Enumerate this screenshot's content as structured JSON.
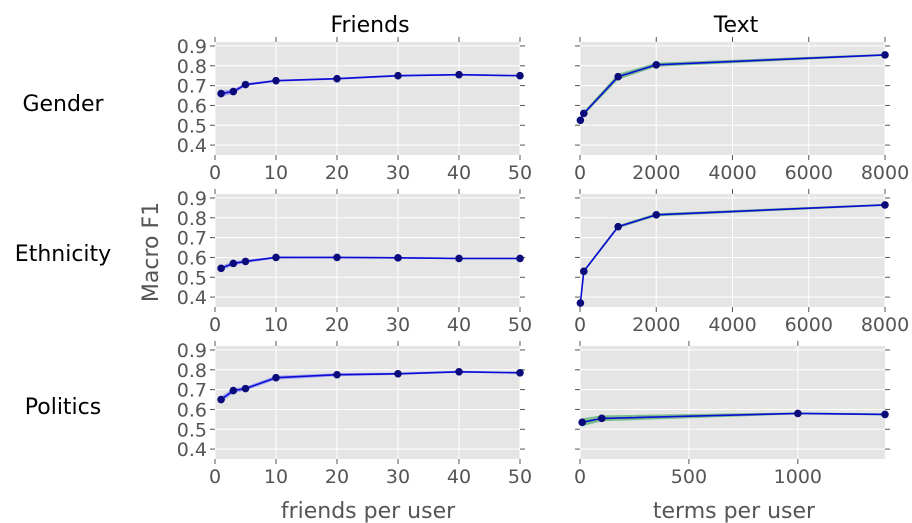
{
  "column_titles": [
    "Friends",
    "Text"
  ],
  "row_labels": [
    "Gender",
    "Ethnicity",
    "Politics"
  ],
  "ylabel": "Macro F1",
  "xlabels": [
    "friends per user",
    "terms per user"
  ],
  "colors": {
    "line": "#0b0bd6",
    "marker": "#0a0a7a",
    "band_friends": "#6f6ff0",
    "band_text": "#55b06e",
    "plot_bg": "#e5e5e5"
  },
  "chart_data": [
    {
      "type": "line",
      "id": "gender-friends",
      "row": 0,
      "col": 0,
      "x": [
        1,
        3,
        5,
        10,
        20,
        30,
        40,
        50
      ],
      "y": [
        0.66,
        0.67,
        0.705,
        0.725,
        0.735,
        0.75,
        0.755,
        0.75
      ],
      "band": [
        0.015,
        0.012,
        0.008,
        0.005,
        0.005,
        0.005,
        0.004,
        0.004
      ],
      "xlim": [
        0,
        50
      ],
      "ylim": [
        0.35,
        0.92
      ],
      "xticks": [
        "0",
        "10",
        "20",
        "30",
        "40",
        "50"
      ],
      "xtick_values": [
        0,
        10,
        20,
        30,
        40,
        50
      ],
      "yticks": [
        "0.4",
        "0.5",
        "0.6",
        "0.7",
        "0.8",
        "0.9"
      ],
      "ytick_values": [
        0.4,
        0.5,
        0.6,
        0.7,
        0.8,
        0.9
      ]
    },
    {
      "type": "line",
      "id": "gender-text",
      "row": 0,
      "col": 1,
      "x": [
        10,
        100,
        1000,
        2000,
        8000
      ],
      "y": [
        0.525,
        0.56,
        0.745,
        0.805,
        0.855
      ],
      "band": [
        0.01,
        0.01,
        0.015,
        0.01,
        0.005
      ],
      "xlim": [
        0,
        8000
      ],
      "ylim": [
        0.35,
        0.92
      ],
      "xticks": [
        "0",
        "2000",
        "4000",
        "6000",
        "8000"
      ],
      "xtick_values": [
        0,
        2000,
        4000,
        6000,
        8000
      ],
      "yticks": [],
      "ytick_values": [
        0.4,
        0.5,
        0.6,
        0.7,
        0.8,
        0.9
      ]
    },
    {
      "type": "line",
      "id": "ethnicity-friends",
      "row": 1,
      "col": 0,
      "x": [
        1,
        3,
        5,
        10,
        20,
        30,
        40,
        50
      ],
      "y": [
        0.545,
        0.57,
        0.58,
        0.6,
        0.6,
        0.598,
        0.595,
        0.595
      ],
      "band": [
        0.012,
        0.01,
        0.008,
        0.005,
        0.004,
        0.004,
        0.004,
        0.004
      ],
      "xlim": [
        0,
        50
      ],
      "ylim": [
        0.35,
        0.92
      ],
      "xticks": [
        "0",
        "10",
        "20",
        "30",
        "40",
        "50"
      ],
      "xtick_values": [
        0,
        10,
        20,
        30,
        40,
        50
      ],
      "yticks": [
        "0.4",
        "0.5",
        "0.6",
        "0.7",
        "0.8",
        "0.9"
      ],
      "ytick_values": [
        0.4,
        0.5,
        0.6,
        0.7,
        0.8,
        0.9
      ]
    },
    {
      "type": "line",
      "id": "ethnicity-text",
      "row": 1,
      "col": 1,
      "x": [
        10,
        100,
        1000,
        2000,
        8000
      ],
      "y": [
        0.37,
        0.53,
        0.755,
        0.815,
        0.865
      ],
      "band": [
        0.005,
        0.008,
        0.008,
        0.008,
        0.005
      ],
      "xlim": [
        0,
        8000
      ],
      "ylim": [
        0.35,
        0.92
      ],
      "xticks": [
        "0",
        "2000",
        "4000",
        "6000",
        "8000"
      ],
      "xtick_values": [
        0,
        2000,
        4000,
        6000,
        8000
      ],
      "yticks": [],
      "ytick_values": [
        0.4,
        0.5,
        0.6,
        0.7,
        0.8,
        0.9
      ]
    },
    {
      "type": "line",
      "id": "politics-friends",
      "row": 2,
      "col": 0,
      "x": [
        1,
        3,
        5,
        10,
        20,
        30,
        40,
        50
      ],
      "y": [
        0.65,
        0.695,
        0.705,
        0.76,
        0.775,
        0.78,
        0.79,
        0.785
      ],
      "band": [
        0.015,
        0.012,
        0.01,
        0.01,
        0.008,
        0.006,
        0.005,
        0.005
      ],
      "xlim": [
        0,
        50
      ],
      "ylim": [
        0.35,
        0.92
      ],
      "xticks": [
        "0",
        "10",
        "20",
        "30",
        "40",
        "50"
      ],
      "xtick_values": [
        0,
        10,
        20,
        30,
        40,
        50
      ],
      "yticks": [
        "0.4",
        "0.5",
        "0.6",
        "0.7",
        "0.8",
        "0.9"
      ],
      "ytick_values": [
        0.4,
        0.5,
        0.6,
        0.7,
        0.8,
        0.9
      ]
    },
    {
      "type": "line",
      "id": "politics-text",
      "row": 2,
      "col": 1,
      "x": [
        10,
        100,
        1000,
        1400
      ],
      "y": [
        0.535,
        0.555,
        0.58,
        0.575
      ],
      "band": [
        0.02,
        0.015,
        0.005,
        0.005
      ],
      "xlim": [
        0,
        1400
      ],
      "ylim": [
        0.35,
        0.92
      ],
      "xticks": [
        "0",
        "500",
        "1000"
      ],
      "xtick_values": [
        0,
        500,
        1000
      ],
      "yticks": [],
      "ytick_values": [
        0.4,
        0.5,
        0.6,
        0.7,
        0.8,
        0.9
      ]
    }
  ]
}
